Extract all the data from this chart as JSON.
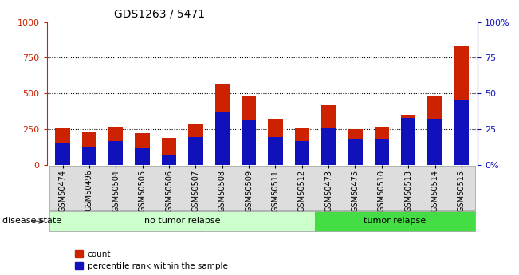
{
  "title": "GDS1263 / 5471",
  "samples": [
    "GSM50474",
    "GSM50496",
    "GSM50504",
    "GSM50505",
    "GSM50506",
    "GSM50507",
    "GSM50508",
    "GSM50509",
    "GSM50511",
    "GSM50512",
    "GSM50473",
    "GSM50475",
    "GSM50510",
    "GSM50513",
    "GSM50514",
    "GSM50515"
  ],
  "counts": [
    255,
    235,
    270,
    225,
    190,
    290,
    570,
    480,
    325,
    255,
    420,
    250,
    265,
    350,
    480,
    830
  ],
  "percentile_ranks_pct": [
    15.5,
    12.0,
    17.0,
    11.5,
    7.0,
    19.5,
    37.5,
    31.5,
    19.5,
    16.5,
    26.0,
    18.5,
    18.5,
    33.0,
    32.5,
    45.5
  ],
  "no_tumor_count": 10,
  "tumor_count": 6,
  "bar_color": "#cc2200",
  "percentile_color": "#1111bb",
  "no_tumor_bg": "#ccffcc",
  "tumor_bg": "#44dd44",
  "tick_bg": "#dddddd",
  "group_label_no_tumor": "no tumor relapse",
  "group_label_tumor": "tumor relapse",
  "disease_state_label": "disease state",
  "legend_count": "count",
  "legend_percentile": "percentile rank within the sample",
  "ylim_left": [
    0,
    1000
  ],
  "ylim_right": [
    0,
    100
  ],
  "yticks_left": [
    0,
    250,
    500,
    750,
    1000
  ],
  "yticks_right": [
    0,
    25,
    50,
    75,
    100
  ],
  "ytick_labels_right": [
    "0%",
    "25",
    "50",
    "75",
    "100%"
  ],
  "left_axis_color": "#cc2200",
  "right_axis_color": "#1111bb",
  "background_color": "#ffffff",
  "bar_width": 0.55
}
